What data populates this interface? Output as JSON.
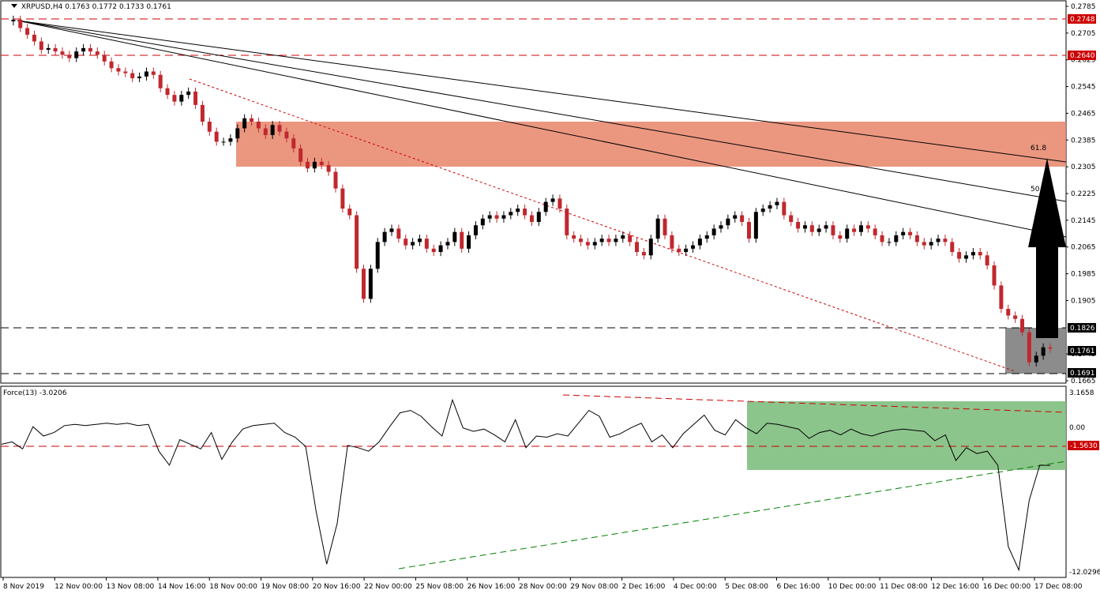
{
  "symbol_header": {
    "symbol": "XRPUSD,H4",
    "open": "0.1763",
    "high": "0.1772",
    "low": "0.1733",
    "close": "0.1761"
  },
  "indicator_header": {
    "name": "Force(13)",
    "value": "-3.0206"
  },
  "colors": {
    "bull_candle": "#000000",
    "bear_candle": "#c0282e",
    "resistance_zone": "#e8856a",
    "support_zone": "#808080",
    "force_zone": "#7fbf7f",
    "level_line_red": "#cc0000",
    "price_label_bg": "#cc0000"
  },
  "price_axis": {
    "ticks": [
      "0.2785",
      "0.2705",
      "0.2625",
      "0.2545",
      "0.2465",
      "0.2385",
      "0.2305",
      "0.2225",
      "0.2145",
      "0.2065",
      "0.1985",
      "0.1905",
      "0.1745",
      "0.1665"
    ],
    "ylim": [
      0.1665,
      0.2785
    ]
  },
  "price_labels": {
    "level_top": "0.2748",
    "level_high": "0.2640",
    "level_support_top": "0.1826",
    "current": "0.1761",
    "level_support_bottom": "0.1691"
  },
  "fib_labels": {
    "fib_50": "50",
    "fib_618": "61.8"
  },
  "force_axis": {
    "ticks": [
      "3.1658",
      "0.00",
      "-12.0296"
    ],
    "level_label": "-1.5630"
  },
  "time_axis": {
    "labels": [
      "8 Nov 2019",
      "12 Nov 00:00",
      "13 Nov 08:00",
      "14 Nov 16:00",
      "18 Nov 00:00",
      "19 Nov 08:00",
      "20 Nov 16:00",
      "22 Nov 00:00",
      "25 Nov 08:00",
      "26 Nov 16:00",
      "28 Nov 00:00",
      "29 Nov 08:00",
      "2 Dec 16:00",
      "4 Dec 00:00",
      "5 Dec 08:00",
      "6 Dec 16:00",
      "10 Dec 00:00",
      "11 Dec 08:00",
      "12 Dec 16:00",
      "16 Dec 00:00",
      "17 Dec 08:00"
    ]
  },
  "chart_data": {
    "type": "candlestick",
    "ylim": [
      0.1665,
      0.2785
    ],
    "force_ylim": [
      -12.0296,
      3.1658
    ],
    "levels": [
      0.2748,
      0.264,
      0.1826,
      0.1691
    ],
    "resistance_zone": [
      0.231,
      0.244
    ],
    "support_zone": [
      0.1691,
      0.1826
    ],
    "force_level": -1.563,
    "close_path": [
      0.274,
      0.2745,
      0.272,
      0.27,
      0.268,
      0.2655,
      0.266,
      0.265,
      0.264,
      0.263,
      0.265,
      0.266,
      0.265,
      0.264,
      0.262,
      0.26,
      0.259,
      0.2585,
      0.257,
      0.2575,
      0.259,
      0.258,
      0.254,
      0.252,
      0.25,
      0.252,
      0.253,
      0.249,
      0.244,
      0.241,
      0.238,
      0.238,
      0.239,
      0.242,
      0.245,
      0.244,
      0.242,
      0.24,
      0.243,
      0.241,
      0.239,
      0.236,
      0.232,
      0.23,
      0.232,
      0.231,
      0.229,
      0.224,
      0.218,
      0.216,
      0.2,
      0.191,
      0.2,
      0.208,
      0.211,
      0.212,
      0.209,
      0.207,
      0.208,
      0.209,
      0.206,
      0.205,
      0.207,
      0.208,
      0.211,
      0.206,
      0.21,
      0.213,
      0.215,
      0.216,
      0.215,
      0.216,
      0.217,
      0.218,
      0.216,
      0.214,
      0.217,
      0.22,
      0.221,
      0.218,
      0.21,
      0.209,
      0.208,
      0.207,
      0.208,
      0.209,
      0.208,
      0.209,
      0.21,
      0.208,
      0.205,
      0.204,
      0.209,
      0.215,
      0.21,
      0.206,
      0.205,
      0.206,
      0.207,
      0.209,
      0.21,
      0.212,
      0.213,
      0.215,
      0.216,
      0.214,
      0.209,
      0.217,
      0.218,
      0.219,
      0.22,
      0.216,
      0.214,
      0.212,
      0.213,
      0.211,
      0.212,
      0.213,
      0.21,
      0.209,
      0.212,
      0.211,
      0.213,
      0.212,
      0.21,
      0.208,
      0.208,
      0.21,
      0.211,
      0.21,
      0.208,
      0.207,
      0.208,
      0.209,
      0.208,
      0.205,
      0.203,
      0.204,
      0.205,
      0.204,
      0.201,
      0.195,
      0.188,
      0.186,
      0.185,
      0.181,
      0.172,
      0.174,
      0.1765,
      0.1761
    ],
    "force_path": [
      -1.2,
      -1.0,
      -1.6,
      0.3,
      -0.5,
      -0.2,
      0.4,
      0.5,
      0.4,
      0.5,
      0.6,
      0.5,
      0.6,
      0.4,
      0.5,
      -1.8,
      -3.0,
      -0.8,
      -1.2,
      -1.6,
      -0.2,
      -2.5,
      -1.0,
      0.1,
      0.4,
      0.5,
      0.6,
      -0.2,
      -0.6,
      -1.4,
      -7.0,
      -11.5,
      -8.0,
      -1.3,
      -1.5,
      -1.8,
      -1.0,
      0.3,
      1.5,
      1.7,
      1.2,
      0.3,
      -0.5,
      2.6,
      0.2,
      -0.1,
      0.1,
      -0.4,
      -1.0,
      0.9,
      -1.5,
      -0.5,
      -0.6,
      -0.3,
      -0.5,
      0.6,
      1.7,
      1.2,
      -0.6,
      -0.3,
      0.2,
      0.6,
      -1.0,
      -0.4,
      -1.5,
      -0.3,
      0.5,
      1.3,
      0.0,
      -0.4,
      0.9,
      0.2,
      -0.3,
      0.6,
      0.5,
      0.3,
      0.1,
      -0.7,
      -0.2,
      0.0,
      -0.4,
      0.1,
      -0.3,
      -0.5,
      -0.2,
      0.0,
      0.1,
      0.0,
      -0.1,
      -0.9,
      -0.4,
      -2.6,
      -1.5,
      -2.0,
      -1.8,
      -3.0,
      -10.0,
      -12.0,
      -6.0,
      -3.0,
      -3.02
    ]
  }
}
